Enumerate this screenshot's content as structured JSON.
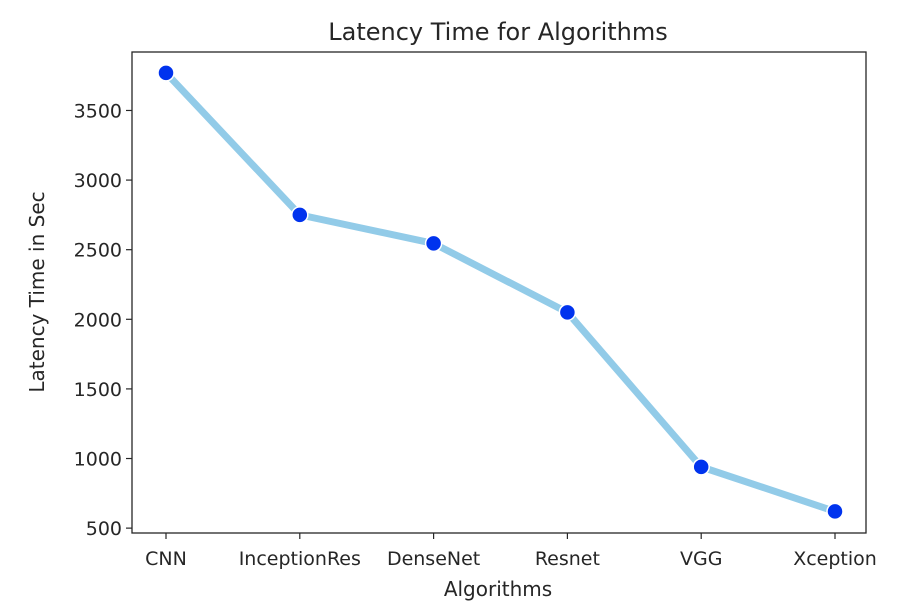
{
  "chart_data": {
    "type": "line",
    "title": "Latency Time for Algorithms",
    "xlabel": "Algorithms",
    "ylabel": "Latency Time in Sec",
    "categories": [
      "CNN",
      "InceptionRes",
      "DenseNet",
      "Resnet",
      "VGG",
      "Xception"
    ],
    "series": [
      {
        "values": [
          3770,
          2750,
          2545,
          2050,
          940,
          620
        ]
      }
    ],
    "ylim": [
      465,
      3920
    ],
    "yticks": [
      500,
      1000,
      1500,
      2000,
      2500,
      3000,
      3500
    ],
    "grid": false,
    "line_color": "#92cbe8",
    "marker_color": "#0033ee"
  }
}
